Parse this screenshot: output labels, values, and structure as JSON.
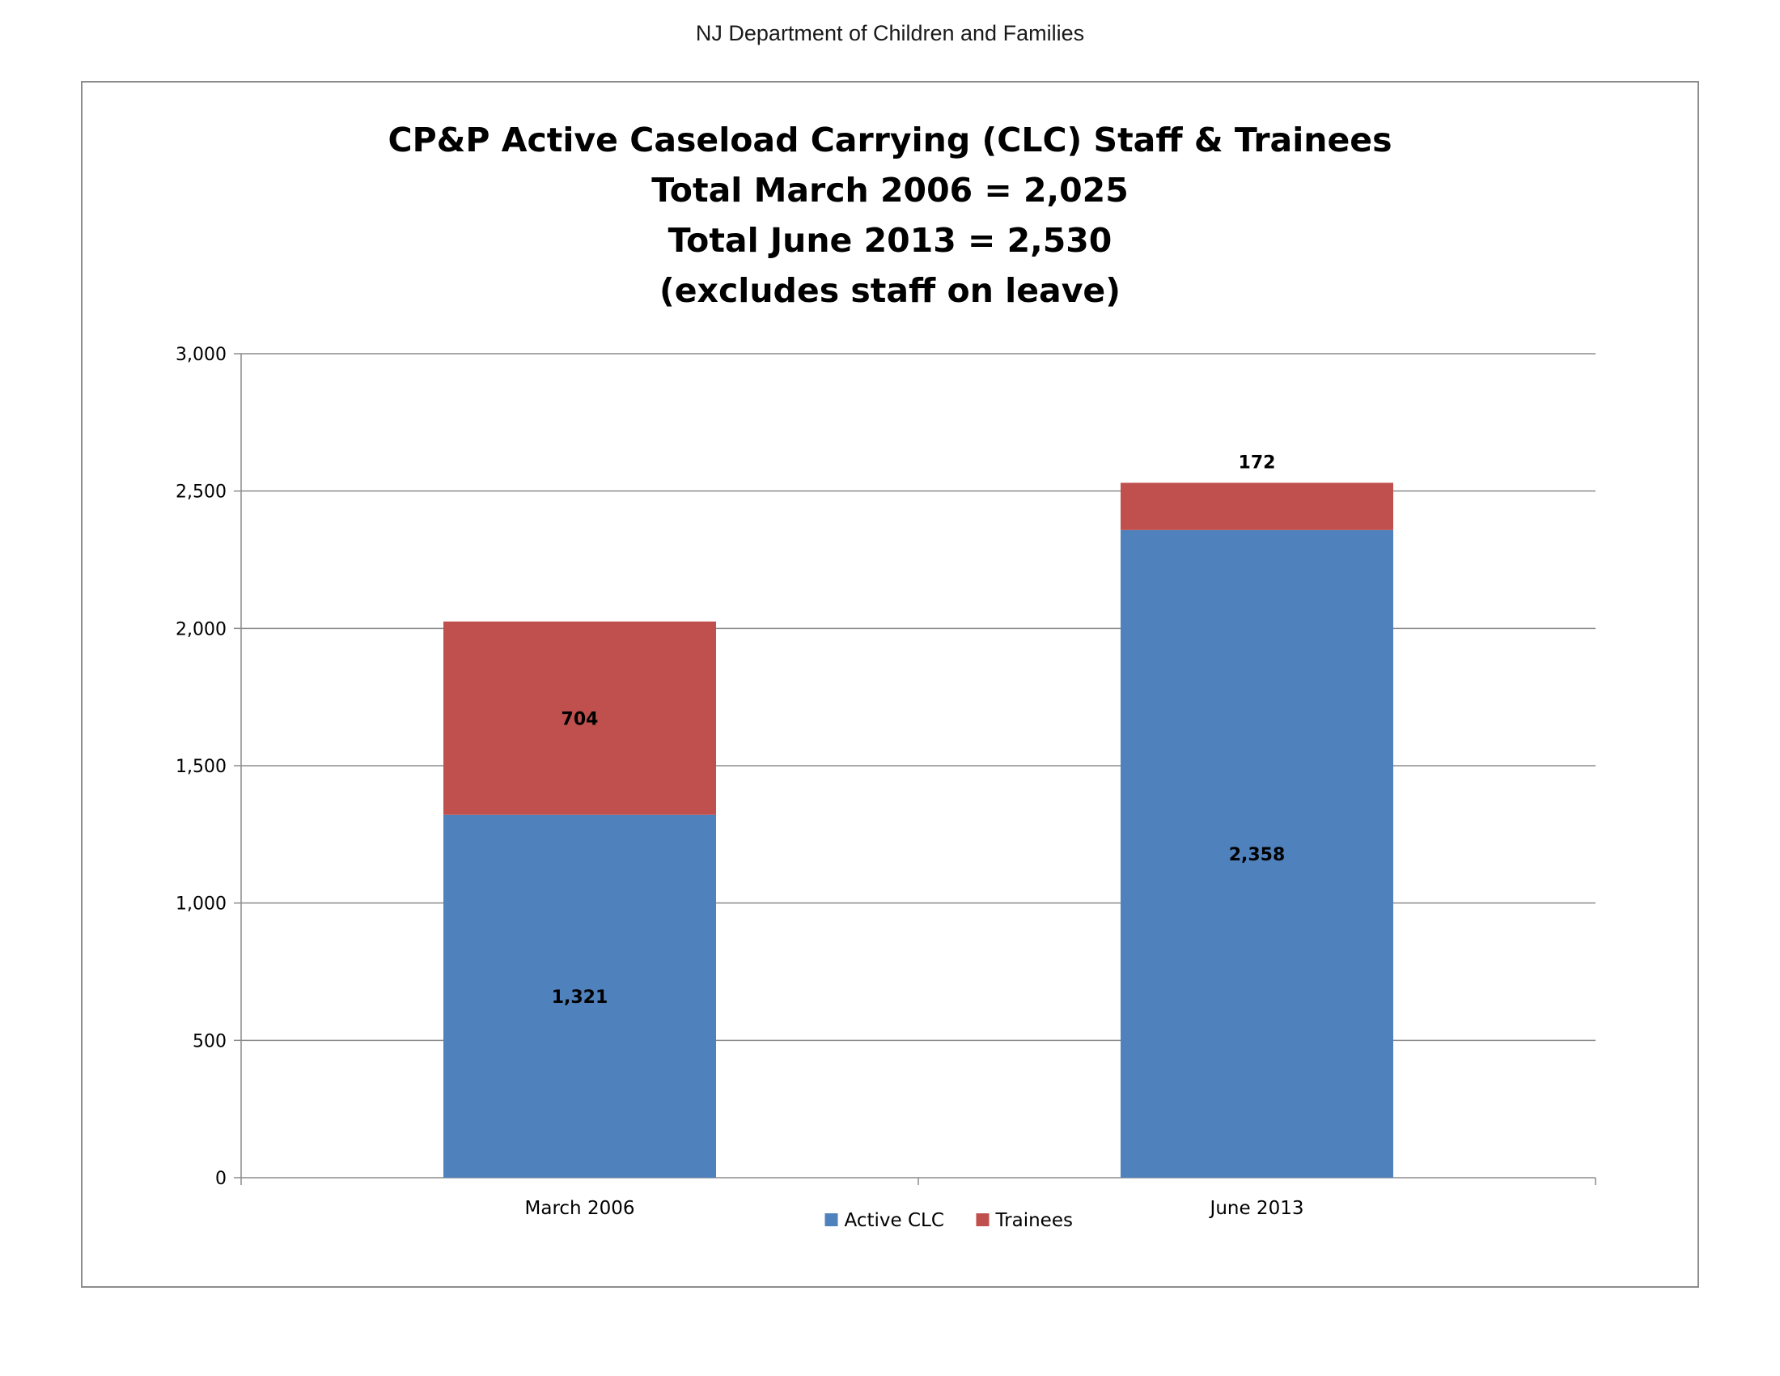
{
  "header": {
    "text": "NJ Department of Children and Families"
  },
  "chart_data": {
    "type": "bar",
    "stacked": true,
    "title_lines": [
      "CP&P Active Caseload Carrying (CLC) Staff & Trainees",
      "Total March 2006 = 2,025",
      "Total June 2013 = 2,530",
      "(excludes staff on leave)"
    ],
    "categories": [
      "March 2006",
      "June 2013"
    ],
    "series": [
      {
        "name": "Active CLC",
        "values": [
          1321,
          2358
        ],
        "labels": [
          "1,321",
          "2,358"
        ],
        "color": "#4F81BD"
      },
      {
        "name": "Trainees",
        "values": [
          704,
          172
        ],
        "labels": [
          "704",
          "172"
        ],
        "color": "#C0504D"
      }
    ],
    "ylim": [
      0,
      3000
    ],
    "yticks": [
      0,
      500,
      1000,
      1500,
      2000,
      2500,
      3000
    ],
    "ytick_labels": [
      "0",
      "500",
      "1,000",
      "1,500",
      "2,000",
      "2,500",
      "3,000"
    ],
    "grid": true,
    "legend_position": "bottom"
  }
}
